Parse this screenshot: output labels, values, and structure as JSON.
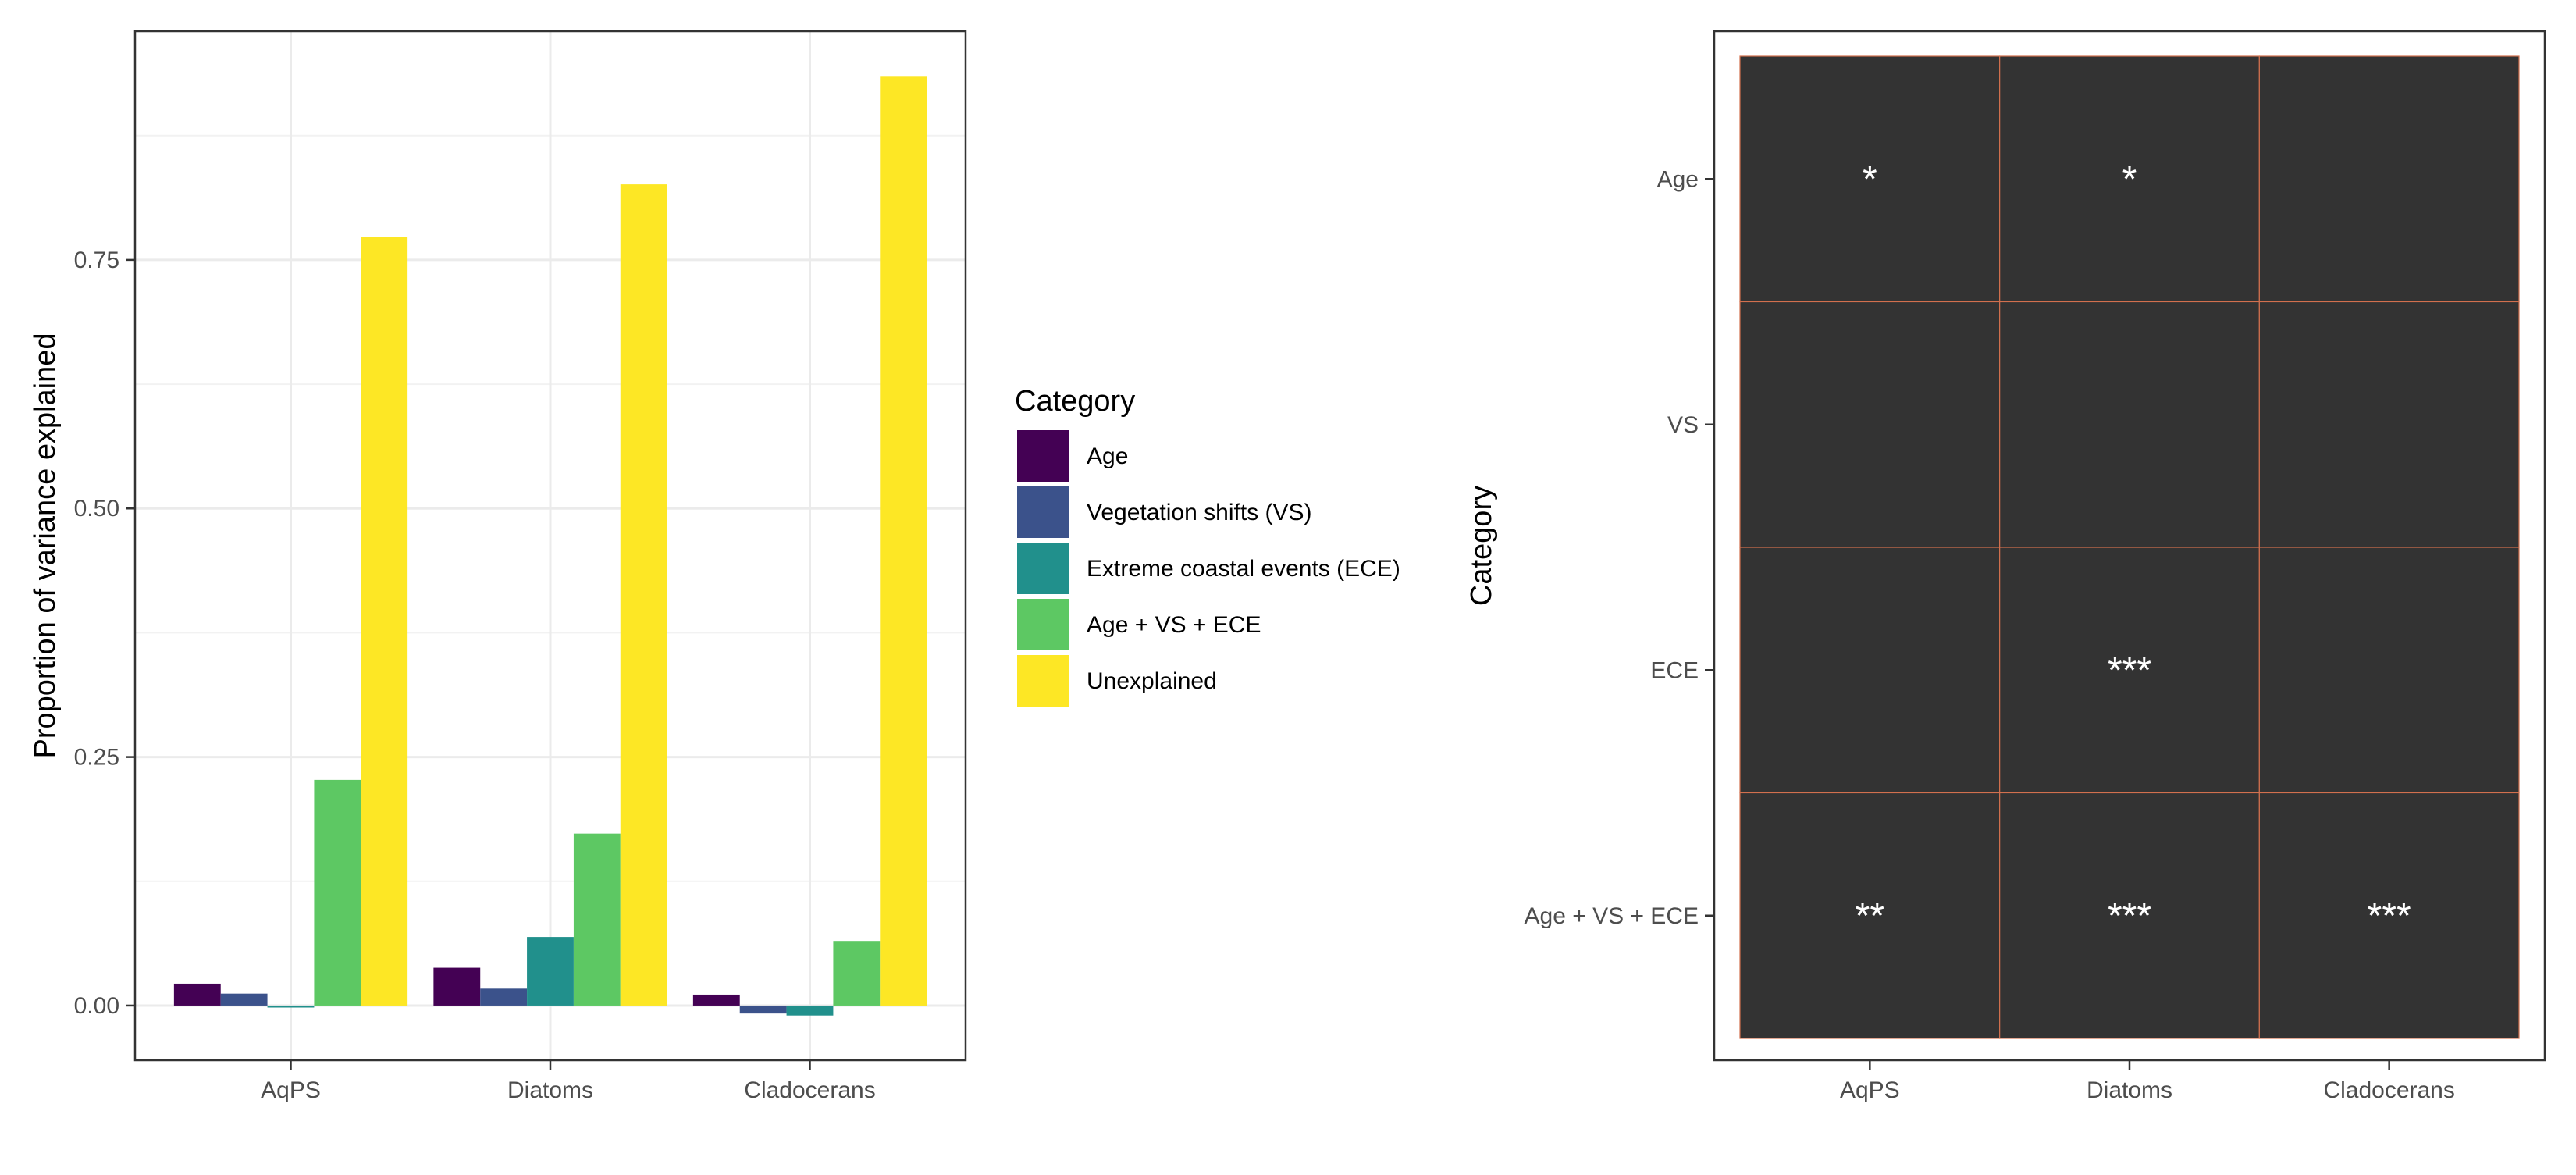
{
  "chart_data": [
    {
      "type": "bar",
      "categories": [
        "AqPS",
        "Diatoms",
        "Cladocerans"
      ],
      "ylabel": "Proportion of variance explained",
      "xlabel": "",
      "yticks": [
        "0.00",
        "0.25",
        "0.50",
        "0.75"
      ],
      "ylim": [
        -0.055,
        0.98
      ],
      "grid": true,
      "series": [
        {
          "name": "Age",
          "color": "#440154",
          "values": [
            0.022,
            0.038,
            0.011
          ]
        },
        {
          "name": "Vegetation shifts (VS)",
          "color": "#3b528b",
          "values": [
            0.012,
            0.017,
            -0.008
          ]
        },
        {
          "name": "Extreme coastal events (ECE)",
          "color": "#21908c",
          "values": [
            -0.002,
            0.069,
            -0.01
          ]
        },
        {
          "name": "Age + VS + ECE",
          "color": "#5dc863",
          "values": [
            0.227,
            0.173,
            0.065
          ]
        },
        {
          "name": "Unexplained",
          "color": "#fde725",
          "values": [
            0.773,
            0.826,
            0.935
          ]
        }
      ],
      "legend": {
        "title": "Category",
        "position": "right"
      }
    },
    {
      "type": "heatmap",
      "x": [
        "AqPS",
        "Diatoms",
        "Cladocerans"
      ],
      "y": [
        "Age",
        "VS",
        "ECE",
        "Age + VS + ECE"
      ],
      "ylabel": "Category",
      "xlabel": "",
      "fill_color": "#333333",
      "grid_color": "#d2704e",
      "cells": [
        [
          "*",
          "*",
          ""
        ],
        [
          "",
          "",
          ""
        ],
        [
          "",
          "***",
          ""
        ],
        [
          "**",
          "***",
          "***"
        ]
      ]
    }
  ]
}
